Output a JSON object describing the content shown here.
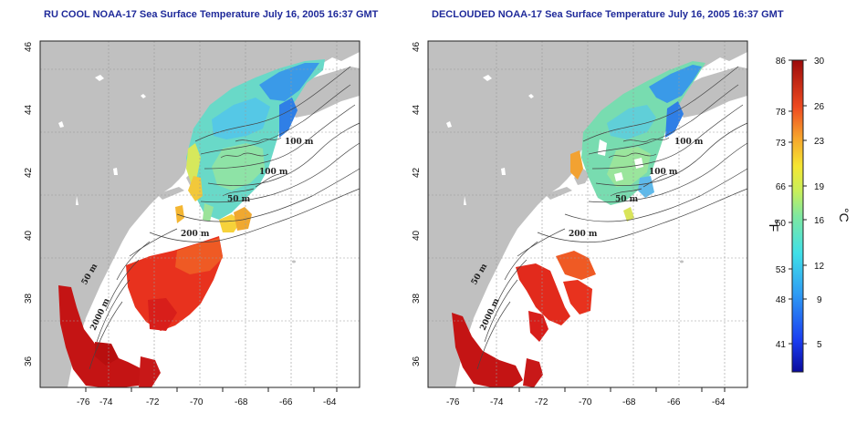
{
  "maps": [
    {
      "title": "RU COOL NOAA-17 Sea Surface Temperature July 16, 2005 16:37 GMT",
      "contour_labels": [
        "100 m",
        "100 m",
        "50 m",
        "200 m",
        "50 m",
        "2000 m"
      ]
    },
    {
      "title": "DECLOUDED NOAA-17 Sea Surface Temperature July 16, 2005 16:37 GMT",
      "contour_labels": [
        "100 m",
        "100 m",
        "50 m",
        "200 m",
        "50 m",
        "2000 m"
      ]
    }
  ],
  "axes": {
    "x_ticks": [
      "-76",
      "-74",
      "-72",
      "-70",
      "-68",
      "-66",
      "-64"
    ],
    "y_ticks": [
      "36",
      "38",
      "40",
      "42",
      "44",
      "46"
    ],
    "x_range": [
      -77,
      -63
    ],
    "y_range": [
      35,
      46
    ]
  },
  "colorbar": {
    "fahrenheit_ticks": [
      "86",
      "78",
      "73",
      "66",
      "60",
      "53",
      "48",
      "41"
    ],
    "celsius_ticks": [
      "30",
      "26",
      "23",
      "19",
      "16",
      "12",
      "9",
      "5"
    ],
    "fahrenheit_unit": "°F",
    "celsius_unit": "°C",
    "range_c": [
      3,
      30
    ]
  },
  "colors": {
    "land": "#c0c0c0",
    "title": "#1f2a9a",
    "warm": "#d21818",
    "cool": "#3fb8e0"
  }
}
